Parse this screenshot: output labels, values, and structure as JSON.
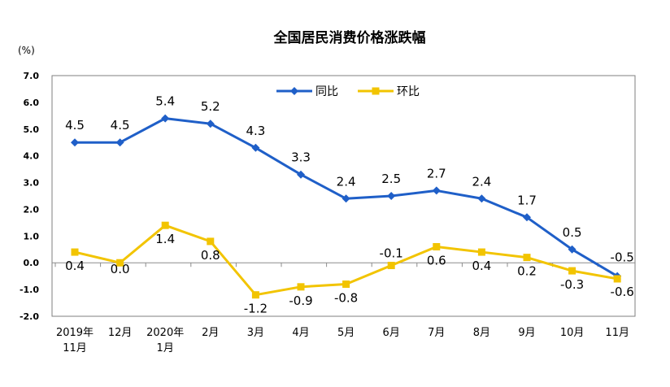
{
  "chart_data": {
    "type": "line",
    "title": "全国居民消费价格涨跌幅",
    "ylabel": "(%)",
    "ylim": [
      -2.0,
      7.0
    ],
    "yticks": [
      "7.0",
      "6.0",
      "5.0",
      "4.0",
      "3.0",
      "2.0",
      "1.0",
      "0.0",
      "-1.0",
      "-2.0"
    ],
    "categories": [
      [
        "2019年",
        "11月"
      ],
      [
        "12月"
      ],
      [
        "2020年",
        "1月"
      ],
      [
        "2月"
      ],
      [
        "3月"
      ],
      [
        "4月"
      ],
      [
        "5月"
      ],
      [
        "6月"
      ],
      [
        "7月"
      ],
      [
        "8月"
      ],
      [
        "9月"
      ],
      [
        "10月"
      ],
      [
        "11月"
      ]
    ],
    "legend_position": "top",
    "series": [
      {
        "name": "同比",
        "color": "#1f5fc8",
        "values": [
          4.5,
          4.5,
          5.4,
          5.2,
          4.3,
          3.3,
          2.4,
          2.5,
          2.7,
          2.4,
          1.7,
          0.5,
          -0.5
        ],
        "labels": [
          "4.5",
          "4.5",
          "5.4",
          "5.2",
          "4.3",
          "3.3",
          "2.4",
          "2.5",
          "2.7",
          "2.4",
          "1.7",
          "0.5",
          "-0.5"
        ]
      },
      {
        "name": "环比",
        "color": "#f2c400",
        "values": [
          0.4,
          0.0,
          1.4,
          0.8,
          -1.2,
          -0.9,
          -0.8,
          -0.1,
          0.6,
          0.4,
          0.2,
          -0.3,
          -0.6
        ],
        "labels": [
          "0.4",
          "0.0",
          "1.4",
          "0.8",
          "-1.2",
          "-0.9",
          "-0.8",
          "-0.1",
          "0.6",
          "0.4",
          "0.2",
          "-0.3",
          "-0.6"
        ]
      }
    ]
  }
}
